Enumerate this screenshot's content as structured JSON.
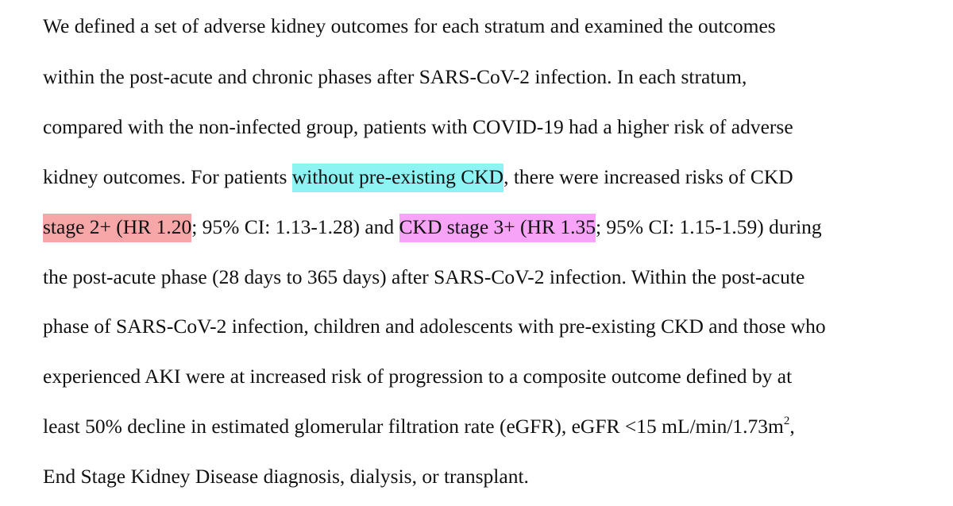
{
  "document": {
    "line1": "We defined a set of adverse kidney outcomes for each stratum and examined the outcomes",
    "line2": "within the post-acute and chronic phases after SARS-CoV-2 infection. In each stratum,",
    "line3": "compared with the non-infected group, patients with COVID-19 had a higher risk of adverse",
    "line4_pre": "kidney outcomes. For patients ",
    "line4_hl": "without pre-existing CKD",
    "line4_post": ", there were increased risks of CKD",
    "line5_hl1": "stage 2+ (HR 1.20",
    "line5_mid": "; 95% CI: 1.13-1.28) and ",
    "line5_hl2": "CKD stage 3+ (HR 1.35",
    "line5_post": "; 95% CI: 1.15-1.59) during",
    "line6": "the post-acute phase (28 days to 365 days) after SARS-CoV-2 infection. Within the post-acute",
    "line7": "phase of SARS-CoV-2 infection, children and adolescents with pre-existing CKD and those who",
    "line8": "experienced AKI were at increased risk of progression to a composite outcome defined by at",
    "line9_pre": "least 50% decline in estimated glomerular filtration rate (eGFR), eGFR <15 mL/min/1.73m",
    "line9_sup": "2",
    "line9_post": ",",
    "line10": "End Stage Kidney Disease diagnosis, dialysis, or transplant."
  },
  "highlight_colors": {
    "cyan": "#8ef3f3",
    "red": "#f7a7a7",
    "magenta": "#f7a3f7"
  }
}
